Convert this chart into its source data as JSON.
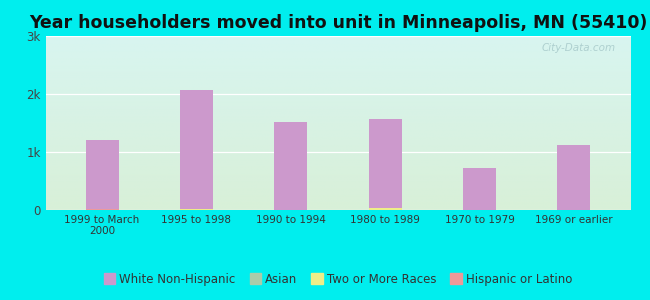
{
  "title": "Year householders moved into unit in Minneapolis, MN (55410)",
  "categories": [
    "1999 to March\n2000",
    "1995 to 1998",
    "1990 to 1994",
    "1980 to 1989",
    "1970 to 1979",
    "1969 or earlier"
  ],
  "series": {
    "White Non-Hispanic": [
      1200,
      2075,
      1525,
      1575,
      725,
      1125
    ],
    "Asian": [
      15,
      25,
      8,
      12,
      0,
      8
    ],
    "Two or More Races": [
      5,
      15,
      5,
      40,
      5,
      5
    ],
    "Hispanic or Latino": [
      25,
      8,
      5,
      5,
      5,
      8
    ]
  },
  "colors": {
    "White Non-Hispanic": "#cc99cc",
    "Asian": "#aaccaa",
    "Two or More Races": "#eeee88",
    "Hispanic or Latino": "#ee9999"
  },
  "ylim": [
    0,
    3000
  ],
  "yticks": [
    0,
    1000,
    2000,
    3000
  ],
  "ytick_labels": [
    "0",
    "1k",
    "2k",
    "3k"
  ],
  "background_color": "#00eeee",
  "plot_bg_top": "#d8f5f0",
  "plot_bg_bottom": "#d8f0d8",
  "watermark": "City-Data.com",
  "bar_width": 0.35,
  "title_fontsize": 12.5,
  "legend_fontsize": 8.5
}
